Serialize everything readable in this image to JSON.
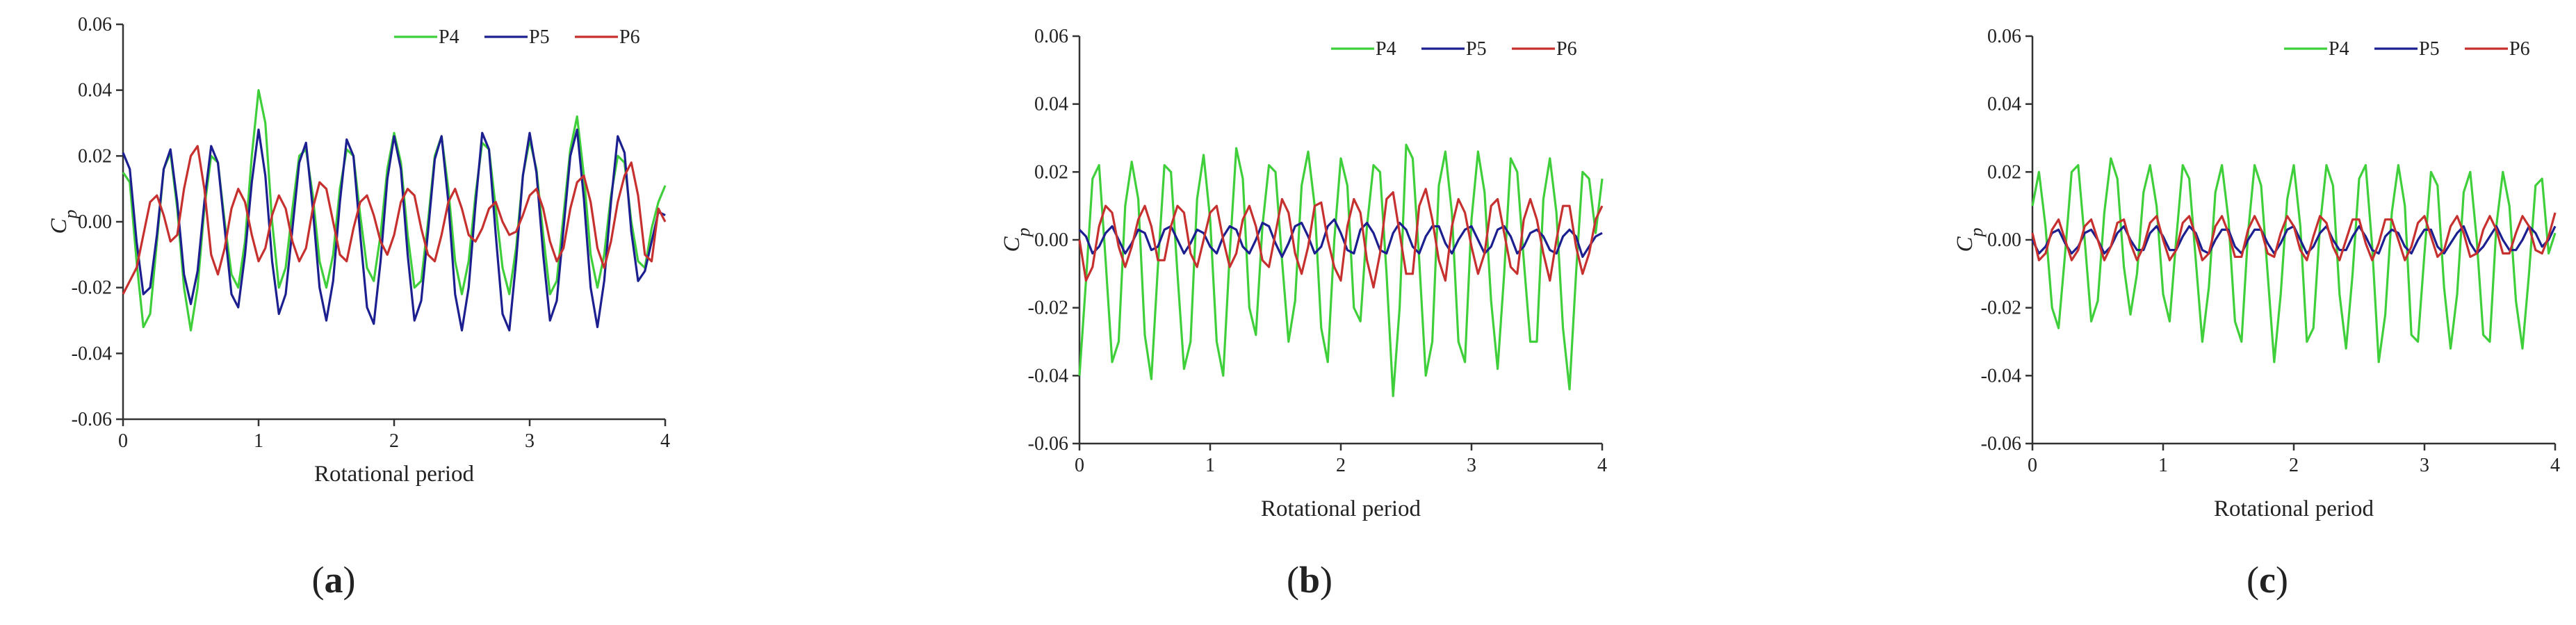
{
  "chart_data": [
    {
      "type": "line",
      "panel_label": "(a)",
      "x_label": "Rotational period",
      "y_label": "Cp",
      "legend": "upper right",
      "x": [
        0,
        0.05,
        0.1,
        0.15,
        0.2,
        0.25,
        0.3,
        0.35,
        0.4,
        0.45,
        0.5,
        0.55,
        0.6,
        0.65,
        0.7,
        0.75,
        0.8,
        0.85,
        0.9,
        0.95,
        1,
        1.05,
        1.1,
        1.15,
        1.2,
        1.25,
        1.3,
        1.35,
        1.4,
        1.45,
        1.5,
        1.55,
        1.6,
        1.65,
        1.7,
        1.75,
        1.8,
        1.85,
        1.9,
        1.95,
        2,
        2.05,
        2.1,
        2.15,
        2.2,
        2.25,
        2.3,
        2.35,
        2.4,
        2.45,
        2.5,
        2.55,
        2.6,
        2.65,
        2.7,
        2.75,
        2.8,
        2.85,
        2.9,
        2.95,
        3,
        3.05,
        3.1,
        3.15,
        3.2,
        3.25,
        3.3,
        3.35,
        3.4,
        3.45,
        3.5,
        3.55,
        3.6,
        3.65,
        3.7,
        3.75,
        3.8,
        3.85,
        3.9,
        3.95,
        4
      ],
      "xlim": [
        0,
        4
      ],
      "xticks": [
        0,
        1,
        2,
        3,
        4
      ],
      "ylim": [
        -0.06,
        0.06
      ],
      "yticks": [
        -0.06,
        -0.04,
        -0.02,
        {
          "value": 0,
          "label": "0.00"
        },
        0.02,
        0.04,
        0.06
      ],
      "series": [
        {
          "name": "P4",
          "color": "#3fcf3a",
          "values": [
            0.015,
            0.012,
            -0.012,
            -0.032,
            -0.028,
            -0.006,
            0.016,
            0.021,
            0.004,
            -0.02,
            -0.033,
            -0.02,
            0.004,
            0.02,
            0.018,
            0.0,
            -0.016,
            -0.02,
            -0.006,
            0.02,
            0.04,
            0.03,
            0.0,
            -0.02,
            -0.014,
            0.004,
            0.02,
            0.022,
            0.008,
            -0.012,
            -0.02,
            -0.01,
            0.01,
            0.022,
            0.02,
            0.002,
            -0.014,
            -0.018,
            -0.004,
            0.016,
            0.027,
            0.018,
            -0.004,
            -0.02,
            -0.018,
            0.0,
            0.02,
            0.026,
            0.01,
            -0.012,
            -0.022,
            -0.012,
            0.008,
            0.024,
            0.022,
            0.004,
            -0.014,
            -0.022,
            -0.008,
            0.014,
            0.025,
            0.016,
            -0.004,
            -0.022,
            -0.018,
            0.002,
            0.022,
            0.032,
            0.014,
            -0.01,
            -0.02,
            -0.01,
            0.008,
            0.02,
            0.018,
            0.0,
            -0.012,
            -0.014,
            -0.002,
            0.006,
            0.011
          ]
        },
        {
          "name": "P5",
          "color": "#1c1f8f",
          "values": [
            0.021,
            0.016,
            -0.006,
            -0.022,
            -0.02,
            -0.004,
            0.016,
            0.022,
            0.006,
            -0.016,
            -0.025,
            -0.015,
            0.006,
            0.023,
            0.018,
            -0.002,
            -0.022,
            -0.026,
            -0.01,
            0.012,
            0.028,
            0.014,
            -0.012,
            -0.028,
            -0.022,
            -0.002,
            0.018,
            0.024,
            0.004,
            -0.02,
            -0.03,
            -0.018,
            0.006,
            0.025,
            0.02,
            -0.004,
            -0.026,
            -0.031,
            -0.012,
            0.013,
            0.026,
            0.016,
            -0.01,
            -0.03,
            -0.024,
            -0.003,
            0.019,
            0.026,
            0.006,
            -0.022,
            -0.033,
            -0.02,
            0.005,
            0.027,
            0.022,
            -0.004,
            -0.028,
            -0.033,
            -0.012,
            0.014,
            0.027,
            0.015,
            -0.01,
            -0.03,
            -0.024,
            -0.002,
            0.02,
            0.028,
            0.007,
            -0.02,
            -0.032,
            -0.018,
            0.006,
            0.026,
            0.021,
            -0.003,
            -0.018,
            -0.015,
            -0.006,
            0.003,
            0.002
          ]
        },
        {
          "name": "P6",
          "color": "#c6312f",
          "values": [
            -0.022,
            -0.018,
            -0.014,
            -0.004,
            0.006,
            0.008,
            0.002,
            -0.006,
            -0.004,
            0.01,
            0.02,
            0.023,
            0.01,
            -0.01,
            -0.016,
            -0.008,
            0.004,
            0.01,
            0.006,
            -0.004,
            -0.012,
            -0.008,
            0.002,
            0.008,
            0.004,
            -0.006,
            -0.012,
            -0.008,
            0.004,
            0.012,
            0.01,
            0.0,
            -0.01,
            -0.012,
            -0.002,
            0.006,
            0.008,
            0.002,
            -0.006,
            -0.01,
            -0.004,
            0.006,
            0.01,
            0.008,
            -0.002,
            -0.01,
            -0.012,
            -0.004,
            0.006,
            0.01,
            0.004,
            -0.004,
            -0.006,
            -0.002,
            0.004,
            0.006,
            0.0,
            -0.004,
            -0.003,
            0.002,
            0.008,
            0.01,
            0.004,
            -0.006,
            -0.012,
            -0.008,
            0.004,
            0.012,
            0.014,
            0.006,
            -0.008,
            -0.014,
            -0.006,
            0.006,
            0.014,
            0.018,
            0.008,
            -0.01,
            -0.012,
            0.004,
            0.0
          ]
        }
      ]
    },
    {
      "type": "line",
      "panel_label": "(b)",
      "x_label": "Rotational period",
      "y_label": "Cp",
      "legend": "upper right",
      "x": [
        0,
        0.05,
        0.1,
        0.15,
        0.2,
        0.25,
        0.3,
        0.35,
        0.4,
        0.45,
        0.5,
        0.55,
        0.6,
        0.65,
        0.7,
        0.75,
        0.8,
        0.85,
        0.9,
        0.95,
        1,
        1.05,
        1.1,
        1.15,
        1.2,
        1.25,
        1.3,
        1.35,
        1.4,
        1.45,
        1.5,
        1.55,
        1.6,
        1.65,
        1.7,
        1.75,
        1.8,
        1.85,
        1.9,
        1.95,
        2,
        2.05,
        2.1,
        2.15,
        2.2,
        2.25,
        2.3,
        2.35,
        2.4,
        2.45,
        2.5,
        2.55,
        2.6,
        2.65,
        2.7,
        2.75,
        2.8,
        2.85,
        2.9,
        2.95,
        3,
        3.05,
        3.1,
        3.15,
        3.2,
        3.25,
        3.3,
        3.35,
        3.4,
        3.45,
        3.5,
        3.55,
        3.6,
        3.65,
        3.7,
        3.75,
        3.8,
        3.85,
        3.9,
        3.95,
        4
      ],
      "xlim": [
        0,
        4
      ],
      "xticks": [
        0,
        1,
        2,
        3,
        4
      ],
      "ylim": [
        -0.06,
        0.06
      ],
      "yticks": [
        -0.06,
        -0.04,
        -0.02,
        {
          "value": 0,
          "label": "0.00"
        },
        0.02,
        0.04,
        0.06
      ],
      "series": [
        {
          "name": "P4",
          "color": "#3fcf3a",
          "values": [
            -0.04,
            -0.012,
            0.018,
            0.022,
            -0.006,
            -0.036,
            -0.03,
            0.01,
            0.023,
            0.012,
            -0.028,
            -0.041,
            -0.008,
            0.022,
            0.02,
            -0.01,
            -0.038,
            -0.03,
            0.012,
            0.025,
            0.006,
            -0.03,
            -0.04,
            -0.004,
            0.027,
            0.018,
            -0.02,
            -0.028,
            0.004,
            0.022,
            0.02,
            -0.006,
            -0.03,
            -0.018,
            0.016,
            0.026,
            0.01,
            -0.026,
            -0.036,
            0.0,
            0.024,
            0.016,
            -0.02,
            -0.024,
            0.004,
            0.022,
            0.02,
            -0.01,
            -0.046,
            -0.02,
            0.028,
            0.024,
            -0.006,
            -0.04,
            -0.03,
            0.016,
            0.026,
            0.008,
            -0.03,
            -0.036,
            0.006,
            0.026,
            0.014,
            -0.018,
            -0.038,
            -0.01,
            0.024,
            0.02,
            -0.006,
            -0.03,
            -0.03,
            0.012,
            0.024,
            0.008,
            -0.026,
            -0.044,
            -0.01,
            0.02,
            0.018,
            0.002,
            0.018
          ]
        },
        {
          "name": "P5",
          "color": "#1c1f8f",
          "values": [
            0.003,
            0.001,
            -0.004,
            -0.002,
            0.002,
            0.004,
            0.0,
            -0.004,
            -0.001,
            0.003,
            0.002,
            -0.003,
            -0.002,
            0.003,
            0.004,
            0.0,
            -0.004,
            -0.001,
            0.003,
            0.002,
            -0.002,
            -0.004,
            0.001,
            0.004,
            0.003,
            -0.002,
            -0.004,
            0.0,
            0.005,
            0.004,
            -0.001,
            -0.005,
            -0.001,
            0.004,
            0.005,
            0.001,
            -0.004,
            -0.002,
            0.004,
            0.006,
            0.002,
            -0.003,
            -0.004,
            0.003,
            0.005,
            0.002,
            -0.003,
            -0.004,
            0.002,
            0.005,
            0.003,
            -0.002,
            -0.004,
            0.001,
            0.004,
            0.004,
            -0.001,
            -0.004,
            0.0,
            0.003,
            0.004,
            0.0,
            -0.004,
            -0.002,
            0.003,
            0.004,
            0.001,
            -0.004,
            -0.002,
            0.002,
            0.003,
            0.001,
            -0.003,
            -0.004,
            0.001,
            0.003,
            0.001,
            -0.005,
            -0.002,
            0.001,
            0.002
          ]
        },
        {
          "name": "P6",
          "color": "#c6312f",
          "values": [
            0.0,
            -0.012,
            -0.008,
            0.004,
            0.01,
            0.008,
            -0.002,
            -0.008,
            -0.002,
            0.006,
            0.01,
            0.004,
            -0.006,
            -0.006,
            0.004,
            0.01,
            0.008,
            -0.004,
            -0.008,
            0.0,
            0.008,
            0.01,
            0.0,
            -0.008,
            -0.004,
            0.006,
            0.01,
            0.004,
            -0.006,
            -0.008,
            0.002,
            0.012,
            0.008,
            -0.004,
            -0.01,
            -0.002,
            0.01,
            0.011,
            0.0,
            -0.008,
            -0.012,
            0.004,
            0.012,
            0.008,
            -0.006,
            -0.014,
            -0.004,
            0.012,
            0.014,
            0.002,
            -0.01,
            -0.01,
            0.01,
            0.015,
            0.006,
            -0.006,
            -0.012,
            0.004,
            0.012,
            0.008,
            -0.002,
            -0.01,
            -0.004,
            0.01,
            0.012,
            0.002,
            -0.008,
            -0.01,
            0.006,
            0.012,
            0.006,
            -0.004,
            -0.012,
            0.0,
            0.01,
            0.01,
            -0.002,
            -0.01,
            -0.004,
            0.006,
            0.01
          ]
        }
      ]
    },
    {
      "type": "line",
      "panel_label": "(c)",
      "x_label": "Rotational period",
      "y_label": "Cp",
      "legend": "upper right",
      "x": [
        0,
        0.05,
        0.1,
        0.15,
        0.2,
        0.25,
        0.3,
        0.35,
        0.4,
        0.45,
        0.5,
        0.55,
        0.6,
        0.65,
        0.7,
        0.75,
        0.8,
        0.85,
        0.9,
        0.95,
        1,
        1.05,
        1.1,
        1.15,
        1.2,
        1.25,
        1.3,
        1.35,
        1.4,
        1.45,
        1.5,
        1.55,
        1.6,
        1.65,
        1.7,
        1.75,
        1.8,
        1.85,
        1.9,
        1.95,
        2,
        2.05,
        2.1,
        2.15,
        2.2,
        2.25,
        2.3,
        2.35,
        2.4,
        2.45,
        2.5,
        2.55,
        2.6,
        2.65,
        2.7,
        2.75,
        2.8,
        2.85,
        2.9,
        2.95,
        3,
        3.05,
        3.1,
        3.15,
        3.2,
        3.25,
        3.3,
        3.35,
        3.4,
        3.45,
        3.5,
        3.55,
        3.6,
        3.65,
        3.7,
        3.75,
        3.8,
        3.85,
        3.9,
        3.95,
        4
      ],
      "xlim": [
        0,
        4
      ],
      "xticks": [
        0,
        1,
        2,
        3,
        4
      ],
      "ylim": [
        -0.06,
        0.06
      ],
      "yticks": [
        -0.06,
        -0.04,
        -0.02,
        {
          "value": 0,
          "label": "0.00"
        },
        0.02,
        0.04,
        0.06
      ],
      "series": [
        {
          "name": "P4",
          "color": "#3fcf3a",
          "values": [
            0.01,
            0.02,
            0.004,
            -0.02,
            -0.026,
            -0.004,
            0.02,
            0.022,
            0.0,
            -0.024,
            -0.018,
            0.008,
            0.024,
            0.018,
            -0.008,
            -0.022,
            -0.01,
            0.014,
            0.022,
            0.01,
            -0.016,
            -0.024,
            0.0,
            0.022,
            0.018,
            -0.006,
            -0.03,
            -0.014,
            0.014,
            0.022,
            0.006,
            -0.024,
            -0.03,
            0.002,
            0.022,
            0.016,
            -0.01,
            -0.036,
            -0.016,
            0.012,
            0.022,
            0.004,
            -0.03,
            -0.026,
            0.004,
            0.022,
            0.016,
            -0.016,
            -0.032,
            -0.01,
            0.018,
            0.022,
            -0.002,
            -0.036,
            -0.022,
            0.008,
            0.022,
            0.01,
            -0.028,
            -0.03,
            -0.004,
            0.02,
            0.016,
            -0.014,
            -0.032,
            -0.016,
            0.014,
            0.02,
            0.0,
            -0.028,
            -0.03,
            0.004,
            0.02,
            0.01,
            -0.018,
            -0.032,
            -0.01,
            0.016,
            0.018,
            -0.004,
            0.002
          ]
        },
        {
          "name": "P5",
          "color": "#1c1f8f",
          "values": [
            0.0,
            -0.004,
            -0.002,
            0.002,
            0.003,
            -0.001,
            -0.004,
            -0.002,
            0.002,
            0.003,
            0.0,
            -0.004,
            -0.002,
            0.002,
            0.004,
            0.0,
            -0.003,
            -0.003,
            0.002,
            0.004,
            0.001,
            -0.003,
            -0.003,
            0.001,
            0.004,
            0.002,
            -0.003,
            -0.004,
            0.0,
            0.003,
            0.003,
            -0.002,
            -0.004,
            0.0,
            0.003,
            0.003,
            -0.001,
            -0.004,
            -0.001,
            0.003,
            0.004,
            0.0,
            -0.004,
            -0.002,
            0.002,
            0.004,
            0.0,
            -0.003,
            -0.003,
            0.001,
            0.004,
            0.001,
            -0.003,
            -0.004,
            0.001,
            0.003,
            0.002,
            -0.002,
            -0.004,
            0.0,
            0.003,
            0.003,
            -0.002,
            -0.004,
            -0.001,
            0.002,
            0.004,
            -0.001,
            -0.004,
            -0.002,
            0.001,
            0.004,
            0.0,
            -0.003,
            -0.003,
            0.0,
            0.004,
            0.002,
            -0.002,
            0.0,
            0.004
          ]
        },
        {
          "name": "P6",
          "color": "#c6312f",
          "values": [
            0.002,
            -0.006,
            -0.004,
            0.003,
            0.006,
            0.0,
            -0.006,
            -0.003,
            0.004,
            0.006,
            0.0,
            -0.006,
            -0.002,
            0.005,
            0.006,
            -0.001,
            -0.006,
            -0.002,
            0.005,
            0.007,
            0.0,
            -0.006,
            -0.003,
            0.005,
            0.007,
            0.001,
            -0.006,
            -0.004,
            0.004,
            0.007,
            0.002,
            -0.005,
            -0.005,
            0.003,
            0.007,
            0.003,
            -0.004,
            -0.005,
            0.002,
            0.007,
            0.004,
            -0.003,
            -0.006,
            0.001,
            0.007,
            0.005,
            -0.002,
            -0.006,
            0.0,
            0.006,
            0.006,
            -0.001,
            -0.006,
            -0.001,
            0.006,
            0.006,
            0.0,
            -0.006,
            -0.002,
            0.005,
            0.007,
            0.001,
            -0.005,
            -0.003,
            0.004,
            0.007,
            0.002,
            -0.005,
            -0.004,
            0.003,
            0.007,
            0.003,
            -0.004,
            -0.004,
            0.002,
            0.007,
            0.004,
            -0.003,
            -0.004,
            0.001,
            0.008
          ]
        }
      ]
    }
  ]
}
